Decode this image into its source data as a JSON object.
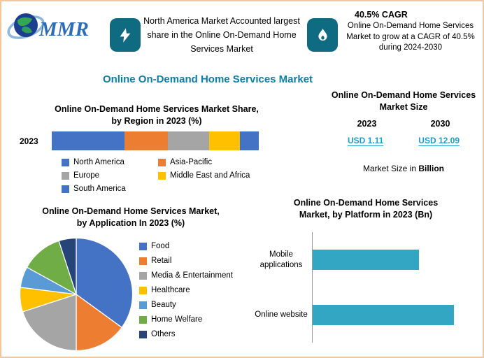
{
  "page": {
    "border_color": "#f2c6a0",
    "background": "#ffffff"
  },
  "brand": {
    "logo_text": "MMR",
    "logo_color": "#2e6db5"
  },
  "header": {
    "icon_background": "#0f6b82",
    "left_highlight": {
      "icon": "lightning-bolt-icon",
      "text": "North America Market Accounted largest share in the Online On-Demand Home Services Market"
    },
    "right_highlight": {
      "icon": "flame-icon",
      "title": "40.5% CAGR",
      "text": "Online On-Demand Home Services Market to grow at a CAGR of 40.5% during 2024-2030"
    }
  },
  "main_title": "Online On-Demand Home Services Market",
  "market_size_panel": {
    "title": "Online On-Demand Home Services Market Size",
    "year_left": "2023",
    "year_right": "2030",
    "value_left": "USD 1.11",
    "value_right": "USD 12.09",
    "note_prefix": "Market Size in ",
    "note_bold": "Billion",
    "value_color": "#1b9ec7"
  },
  "chart_data": [
    {
      "type": "bar",
      "variant": "stacked-horizontal",
      "title": "Online On-Demand Home Services Market Share, by Region in 2023 (%)",
      "categories": [
        "2023"
      ],
      "series": [
        {
          "name": "North America",
          "values": [
            35
          ],
          "color": "#4472c4"
        },
        {
          "name": "Asia-Pacific",
          "values": [
            21
          ],
          "color": "#ed7d31"
        },
        {
          "name": "Europe",
          "values": [
            20
          ],
          "color": "#a5a5a5"
        },
        {
          "name": "Middle East and Africa",
          "values": [
            15
          ],
          "color": "#ffc000"
        },
        {
          "name": "South America",
          "values": [
            9
          ],
          "color": "#4472c4"
        }
      ],
      "xlim": [
        0,
        100
      ],
      "legend_position": "bottom",
      "note": "segment percentages estimated from bar segment widths; no data labels shown"
    },
    {
      "type": "pie",
      "title": "Online On-Demand Home Services Market, by Application In 2023 (%)",
      "labels": [
        "Food",
        "Retail",
        "Media & Entertainment",
        "Healthcare",
        "Beauty",
        "Home Welfare",
        "Others"
      ],
      "values": [
        35,
        15,
        20,
        7,
        6,
        12,
        5
      ],
      "colors": [
        "#4472c4",
        "#ed7d31",
        "#a5a5a5",
        "#ffc000",
        "#5b9bd5",
        "#70ad47",
        "#264478"
      ],
      "legend_position": "right",
      "note": "slice percentages estimated from slice angles; no data labels shown"
    },
    {
      "type": "bar",
      "variant": "horizontal",
      "title": "Online On-Demand Home Services Market, by Platform in 2023 (Bn)",
      "categories": [
        "Mobile applications",
        "Online website"
      ],
      "values": [
        0.75,
        1.0
      ],
      "color": "#33a6c4",
      "note": "axis values not shown in chart; values are relative bar lengths"
    }
  ]
}
